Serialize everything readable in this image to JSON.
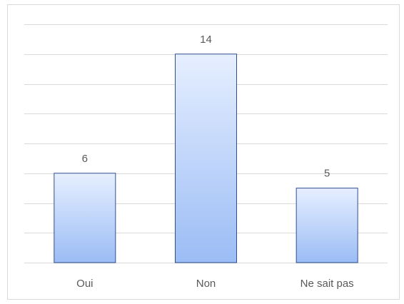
{
  "chart_data": {
    "type": "bar",
    "title": "",
    "xlabel": "",
    "ylabel": "",
    "categories": [
      "Oui",
      "Non",
      "Ne sait pas"
    ],
    "values": [
      6,
      14,
      5
    ],
    "ylim": [
      0,
      16
    ],
    "grid": true,
    "legend": "none",
    "colors": {
      "bar_top": "#e6efff",
      "bar_bottom": "#9bbcf5",
      "bar_border": "#2f4f8f",
      "grid": "#d9d9d9",
      "text": "#595959"
    }
  }
}
